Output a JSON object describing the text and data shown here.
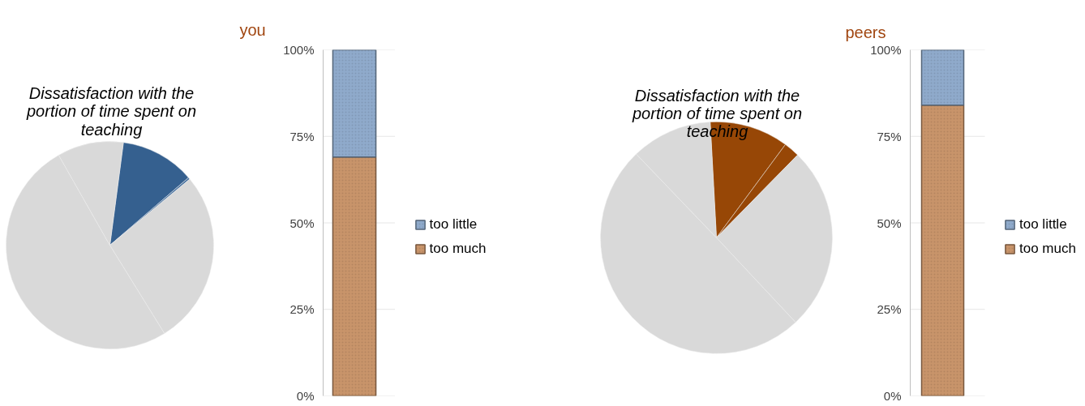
{
  "chart_data": [
    {
      "type": "pie",
      "title": "Dissatisfaction with the portion of time spent on teaching",
      "categories": [
        null,
        null,
        null,
        null,
        null
      ],
      "values": [
        11.6,
        0.3,
        27.2,
        50.6,
        10.3
      ],
      "colors": [
        "#35608f",
        "#4a73a0",
        "#d9d9d9",
        "#d9d9d9",
        "#d9d9d9"
      ]
    },
    {
      "type": "bar",
      "title": "you",
      "categories": [
        null
      ],
      "stacked": true,
      "ylim": [
        0,
        100
      ],
      "yticks": [
        {
          "value": 0,
          "label": "0%"
        },
        {
          "value": 25,
          "label": "25%"
        },
        {
          "value": 50,
          "label": "50%"
        },
        {
          "value": 75,
          "label": "75%"
        },
        {
          "value": 100,
          "label": "100%"
        }
      ],
      "grid": "y",
      "legend": "right",
      "series": [
        {
          "name": "too much",
          "color": "#c8946a",
          "values": [
            69
          ]
        },
        {
          "name": "too little",
          "color": "#8faacb",
          "values": [
            31
          ]
        }
      ]
    },
    {
      "type": "pie",
      "title": "Dissatisfaction with the portion of time spent on teaching",
      "categories": [
        null,
        null,
        null,
        null,
        null
      ],
      "values": [
        11.0,
        2.2,
        25.7,
        49.8,
        11.3
      ],
      "colors": [
        "#974706",
        "#974706",
        "#d9d9d9",
        "#d9d9d9",
        "#d9d9d9"
      ]
    },
    {
      "type": "bar",
      "title": "peers",
      "categories": [
        null
      ],
      "stacked": true,
      "ylim": [
        0,
        100
      ],
      "yticks": [
        {
          "value": 0,
          "label": "0%"
        },
        {
          "value": 25,
          "label": "25%"
        },
        {
          "value": 50,
          "label": "50%"
        },
        {
          "value": 75,
          "label": "75%"
        },
        {
          "value": 100,
          "label": "100%"
        }
      ],
      "grid": "y",
      "legend": "right",
      "series": [
        {
          "name": "too much",
          "color": "#c8946a",
          "values": [
            84
          ]
        },
        {
          "name": "too little",
          "color": "#8faacb",
          "values": [
            16
          ]
        }
      ]
    }
  ]
}
